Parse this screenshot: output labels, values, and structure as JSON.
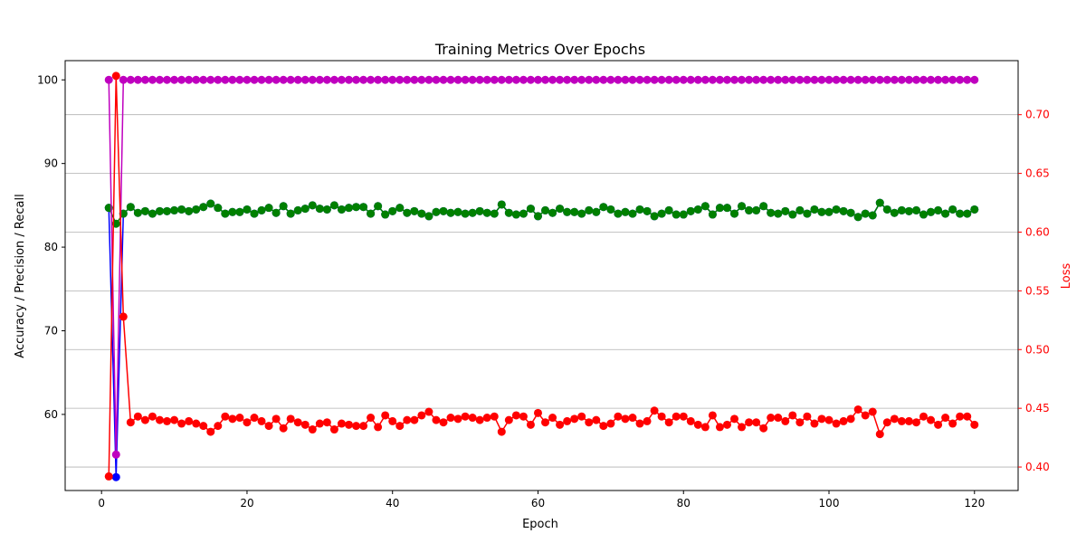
{
  "chart_data": {
    "type": "line",
    "title": "Training Metrics Over Epochs",
    "xlabel": "Epoch",
    "ylabel_left": "Accuracy / Precision / Recall",
    "ylabel_right": "Loss",
    "xlim": [
      -5,
      126
    ],
    "ylim_left": [
      50.9,
      102.3
    ],
    "ylim_right": [
      0.38,
      0.746
    ],
    "xticks": [
      0,
      20,
      40,
      60,
      80,
      100,
      120
    ],
    "yticks_left": [
      60,
      70,
      80,
      90,
      100
    ],
    "yticks_right": [
      0.4,
      0.45,
      0.5,
      0.55,
      0.6,
      0.65,
      0.7
    ],
    "yticks_right_labels": [
      "0.40",
      "0.45",
      "0.50",
      "0.55",
      "0.60",
      "0.65",
      "0.70"
    ],
    "grid": "horizontal on right axis",
    "series": [
      {
        "axis": "left",
        "color": "#0000ff",
        "values": [
          84.7,
          52.5,
          84.0,
          84.8,
          84.1,
          84.3,
          84.0,
          84.3,
          84.3,
          84.4,
          84.5,
          84.3,
          84.5,
          84.8,
          85.2,
          84.7,
          84.0,
          84.2,
          84.2,
          84.5,
          84.0,
          84.4,
          84.7,
          84.1,
          84.9,
          84.0,
          84.4,
          84.6,
          85.0,
          84.6,
          84.5,
          85.0,
          84.5,
          84.7,
          84.8,
          84.8,
          84.0,
          84.9,
          83.9,
          84.3,
          84.7,
          84.1,
          84.3,
          84.0,
          83.7,
          84.2,
          84.3,
          84.1,
          84.2,
          84.0,
          84.1,
          84.3,
          84.1,
          84.0,
          85.1,
          84.1,
          83.9,
          84.0,
          84.6,
          83.7,
          84.4,
          84.1,
          84.6,
          84.2,
          84.2,
          84.0,
          84.4,
          84.2,
          84.8,
          84.5,
          84.0,
          84.2,
          84.0,
          84.5,
          84.3,
          83.7,
          84.0,
          84.4,
          83.9,
          83.9,
          84.3,
          84.5,
          84.9,
          83.9,
          84.7,
          84.7,
          84.0,
          84.9,
          84.4,
          84.4,
          84.9,
          84.1,
          84.0,
          84.3,
          83.9,
          84.4,
          84.0,
          84.5,
          84.2,
          84.2,
          84.5,
          84.3,
          84.1,
          83.6,
          84.0,
          83.8,
          85.3,
          84.5,
          84.1,
          84.4,
          84.3,
          84.4,
          83.9,
          84.2,
          84.4,
          84.0,
          84.5,
          84.0,
          84.0,
          84.5
        ]
      },
      {
        "axis": "left",
        "color": "#008000",
        "values": [
          84.7,
          82.8,
          84.0,
          84.8,
          84.1,
          84.3,
          84.0,
          84.3,
          84.3,
          84.4,
          84.5,
          84.3,
          84.5,
          84.8,
          85.2,
          84.7,
          84.0,
          84.2,
          84.2,
          84.5,
          84.0,
          84.4,
          84.7,
          84.1,
          84.9,
          84.0,
          84.4,
          84.6,
          85.0,
          84.6,
          84.5,
          85.0,
          84.5,
          84.7,
          84.8,
          84.8,
          84.0,
          84.9,
          83.9,
          84.3,
          84.7,
          84.1,
          84.3,
          84.0,
          83.7,
          84.2,
          84.3,
          84.1,
          84.2,
          84.0,
          84.1,
          84.3,
          84.1,
          84.0,
          85.1,
          84.1,
          83.9,
          84.0,
          84.6,
          83.7,
          84.4,
          84.1,
          84.6,
          84.2,
          84.2,
          84.0,
          84.4,
          84.2,
          84.8,
          84.5,
          84.0,
          84.2,
          84.0,
          84.5,
          84.3,
          83.7,
          84.0,
          84.4,
          83.9,
          83.9,
          84.3,
          84.5,
          84.9,
          83.9,
          84.7,
          84.7,
          84.0,
          84.9,
          84.4,
          84.4,
          84.9,
          84.1,
          84.0,
          84.3,
          83.9,
          84.4,
          84.0,
          84.5,
          84.2,
          84.2,
          84.5,
          84.3,
          84.1,
          83.6,
          84.0,
          83.8,
          85.3,
          84.5,
          84.1,
          84.4,
          84.3,
          84.4,
          83.9,
          84.2,
          84.4,
          84.0,
          84.5,
          84.0,
          84.0,
          84.5
        ]
      },
      {
        "axis": "left",
        "color": "#bf00bf",
        "values": [
          100,
          55.2,
          100,
          100,
          100,
          100,
          100,
          100,
          100,
          100,
          100,
          100,
          100,
          100,
          100,
          100,
          100,
          100,
          100,
          100,
          100,
          100,
          100,
          100,
          100,
          100,
          100,
          100,
          100,
          100,
          100,
          100,
          100,
          100,
          100,
          100,
          100,
          100,
          100,
          100,
          100,
          100,
          100,
          100,
          100,
          100,
          100,
          100,
          100,
          100,
          100,
          100,
          100,
          100,
          100,
          100,
          100,
          100,
          100,
          100,
          100,
          100,
          100,
          100,
          100,
          100,
          100,
          100,
          100,
          100,
          100,
          100,
          100,
          100,
          100,
          100,
          100,
          100,
          100,
          100,
          100,
          100,
          100,
          100,
          100,
          100,
          100,
          100,
          100,
          100,
          100,
          100,
          100,
          100,
          100,
          100,
          100,
          100,
          100,
          100,
          100,
          100,
          100,
          100,
          100,
          100,
          100,
          100,
          100,
          100,
          100,
          100,
          100,
          100,
          100,
          100,
          100,
          100,
          100,
          100
        ]
      },
      {
        "axis": "right",
        "color": "#ff0000",
        "values": [
          0.392,
          0.733,
          0.528,
          0.438,
          0.443,
          0.44,
          0.443,
          0.44,
          0.439,
          0.44,
          0.437,
          0.439,
          0.437,
          0.435,
          0.43,
          0.435,
          0.443,
          0.441,
          0.442,
          0.438,
          0.442,
          0.439,
          0.435,
          0.441,
          0.433,
          0.441,
          0.438,
          0.436,
          0.432,
          0.437,
          0.438,
          0.432,
          0.437,
          0.436,
          0.435,
          0.435,
          0.442,
          0.434,
          0.444,
          0.439,
          0.435,
          0.44,
          0.44,
          0.444,
          0.447,
          0.44,
          0.438,
          0.442,
          0.441,
          0.443,
          0.442,
          0.44,
          0.442,
          0.443,
          0.43,
          0.44,
          0.444,
          0.443,
          0.436,
          0.446,
          0.438,
          0.442,
          0.436,
          0.439,
          0.441,
          0.443,
          0.438,
          0.44,
          0.435,
          0.437,
          0.443,
          0.441,
          0.442,
          0.437,
          0.439,
          0.448,
          0.443,
          0.438,
          0.443,
          0.443,
          0.439,
          0.436,
          0.434,
          0.444,
          0.434,
          0.436,
          0.441,
          0.434,
          0.438,
          0.438,
          0.433,
          0.442,
          0.442,
          0.439,
          0.444,
          0.438,
          0.443,
          0.437,
          0.441,
          0.44,
          0.437,
          0.439,
          0.441,
          0.449,
          0.444,
          0.447,
          0.428,
          0.438,
          0.441,
          0.439,
          0.439,
          0.438,
          0.443,
          0.44,
          0.436,
          0.442,
          0.437,
          0.443,
          0.443,
          0.436
        ]
      }
    ]
  }
}
